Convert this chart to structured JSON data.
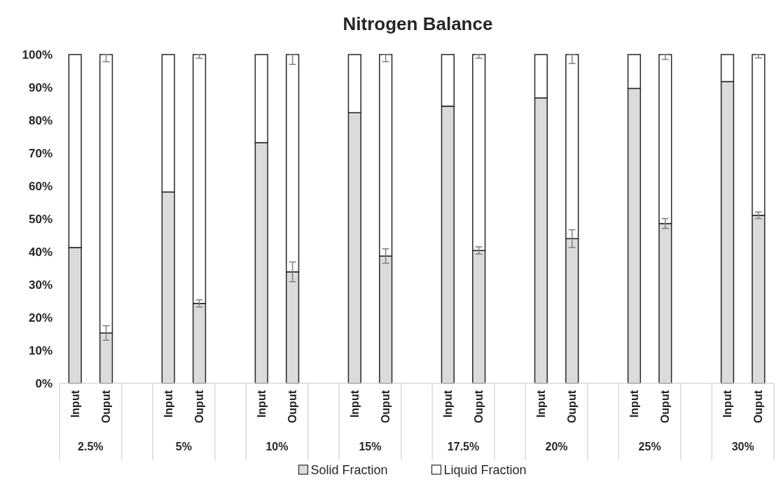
{
  "chart_data": {
    "type": "bar",
    "title": "Nitrogen Balance",
    "stacked": true,
    "categories": [
      "Input",
      "Ouput",
      null,
      "Input",
      "Ouput",
      null,
      "Input",
      "Ouput",
      null,
      "Input",
      "Ouput",
      null,
      "Input",
      "Ouput",
      null,
      "Input",
      "Ouput",
      null,
      "Input",
      "Ouput",
      null,
      "Input",
      "Ouput"
    ],
    "series": [
      {
        "name": "Solid Fraction",
        "color": "#dadbdc",
        "values": [
          41.3,
          15.3,
          null,
          58.2,
          24.3,
          null,
          73.2,
          33.9,
          null,
          82.3,
          38.7,
          null,
          84.3,
          40.4,
          null,
          86.8,
          44.0,
          null,
          89.7,
          48.6,
          null,
          91.8,
          51.1
        ],
        "errors": [
          null,
          2.2,
          null,
          null,
          1.1,
          null,
          null,
          3.0,
          null,
          null,
          2.2,
          null,
          null,
          1.1,
          null,
          null,
          2.7,
          null,
          null,
          1.5,
          null,
          null,
          1.0
        ]
      },
      {
        "name": "Liquid Fraction",
        "color": "#ffffff",
        "values": [
          58.7,
          84.7,
          null,
          41.8,
          75.7,
          null,
          26.8,
          66.1,
          null,
          17.7,
          61.3,
          null,
          15.7,
          59.6,
          null,
          13.2,
          56.0,
          null,
          10.3,
          51.4,
          null,
          8.2,
          48.9
        ],
        "errors": [
          null,
          [
            97.8,
            100
          ],
          null,
          null,
          [
            98.9,
            100
          ],
          null,
          null,
          [
            97.0,
            100
          ],
          null,
          null,
          [
            97.8,
            100
          ],
          null,
          null,
          [
            98.9,
            100
          ],
          null,
          null,
          [
            97.3,
            100
          ],
          null,
          null,
          [
            98.5,
            100
          ],
          null,
          null,
          [
            99.0,
            100
          ]
        ]
      }
    ],
    "annotations": [
      "2.5%",
      "5%",
      "10%",
      "15%",
      "17.5%",
      "20%",
      "25%",
      "30%"
    ],
    "ylim": [
      0,
      100
    ],
    "yticks": [
      {
        "value": 0,
        "label": "0%"
      },
      {
        "value": 10,
        "label": "10%"
      },
      {
        "value": 20,
        "label": "20%"
      },
      {
        "value": 30,
        "label": "30%"
      },
      {
        "value": 40,
        "label": "40%"
      },
      {
        "value": 50,
        "label": "50%"
      },
      {
        "value": 60,
        "label": "60%"
      },
      {
        "value": 70,
        "label": "70%"
      },
      {
        "value": 80,
        "label": "80%"
      },
      {
        "value": 90,
        "label": "90%"
      },
      {
        "value": 100,
        "label": "100%"
      }
    ],
    "grid": false,
    "legend": "bottom"
  }
}
